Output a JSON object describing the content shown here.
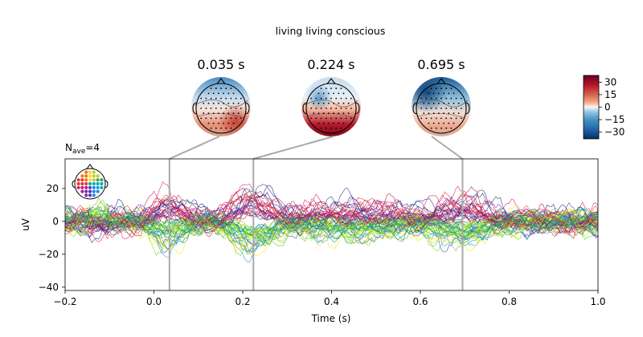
{
  "figure": {
    "title": "living living conscious"
  },
  "topomaps": [
    {
      "time": 0.035,
      "label": "0.035 s"
    },
    {
      "time": 0.224,
      "label": "0.224 s"
    },
    {
      "time": 0.695,
      "label": "0.695 s"
    }
  ],
  "colorbar": {
    "ticks": [
      "30",
      "15",
      "0",
      "−15",
      "−30"
    ],
    "values": [
      30,
      15,
      0,
      -15,
      -30
    ],
    "range": [
      -38,
      38
    ],
    "cmap": "RdBu_r"
  },
  "nave": {
    "base": "N",
    "sub": "ave",
    "value": "=4"
  },
  "chart_data": {
    "type": "line",
    "title": "",
    "xlabel": "Time (s)",
    "ylabel": "uV",
    "xlim": [
      -0.2,
      1.0
    ],
    "ylim": [
      -42,
      38
    ],
    "xticks": [
      -0.2,
      0.0,
      0.2,
      0.4,
      0.6,
      0.8,
      1.0
    ],
    "xtick_labels": [
      "−0.2",
      "0.0",
      "0.2",
      "0.4",
      "0.6",
      "0.8",
      "1.0"
    ],
    "yticks": [
      -40,
      -20,
      0,
      20
    ],
    "ytick_labels": [
      "−40",
      "−20",
      "0",
      "20"
    ],
    "grid": false,
    "vlines": [
      0.035,
      0.224,
      0.695
    ],
    "series_note": "butterfly plot of ~60 EEG channels colored by scalp position",
    "channel_count": 60
  },
  "colors": {
    "red": "#b2182b",
    "blue": "#2166ac",
    "vline": "#a9a9a9"
  }
}
